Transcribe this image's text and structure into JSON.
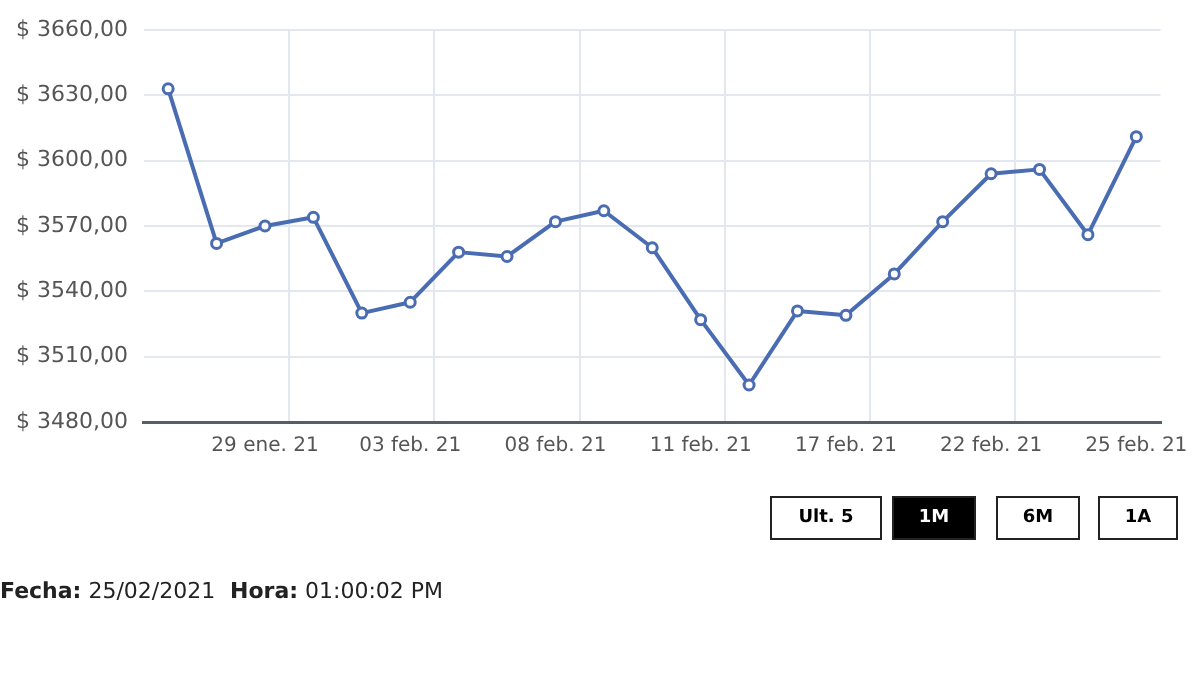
{
  "chart_data": {
    "type": "line",
    "categories": [
      null,
      null,
      "29 ene. 21",
      null,
      null,
      "03 feb. 21",
      null,
      null,
      "08 feb. 21",
      null,
      null,
      "11 feb. 21",
      null,
      null,
      "17 feb. 21",
      null,
      null,
      "22 feb. 21",
      null,
      null,
      "25 feb. 21"
    ],
    "series": [
      {
        "color": "#4a6cb3",
        "values": [
          3633,
          3562,
          3570,
          3574,
          3530,
          3535,
          3558,
          3556,
          3572,
          3577,
          3560,
          3527,
          3497,
          3531,
          3529,
          3548,
          3572,
          3594,
          3596,
          3566,
          3611
        ]
      }
    ],
    "ylim": [
      3480,
      3660
    ],
    "yticks": [
      {
        "value": 3480,
        "label": "$ 3480,00"
      },
      {
        "value": 3510,
        "label": "$ 3510,00"
      },
      {
        "value": 3540,
        "label": "$ 3540,00"
      },
      {
        "value": 3570,
        "label": "$ 3570,00"
      },
      {
        "value": 3600,
        "label": "$ 3600,00"
      },
      {
        "value": 3630,
        "label": "$ 3630,00"
      },
      {
        "value": 3660,
        "label": "$ 3660,00"
      }
    ],
    "grid": true,
    "legend": false,
    "marker": "circle",
    "line_style": "solid",
    "annotations": [
      "Ult. 5",
      "1M",
      "6M",
      "1A",
      "Fecha: 25/02/2021",
      "Hora: 01:00:02 PM"
    ]
  }
}
